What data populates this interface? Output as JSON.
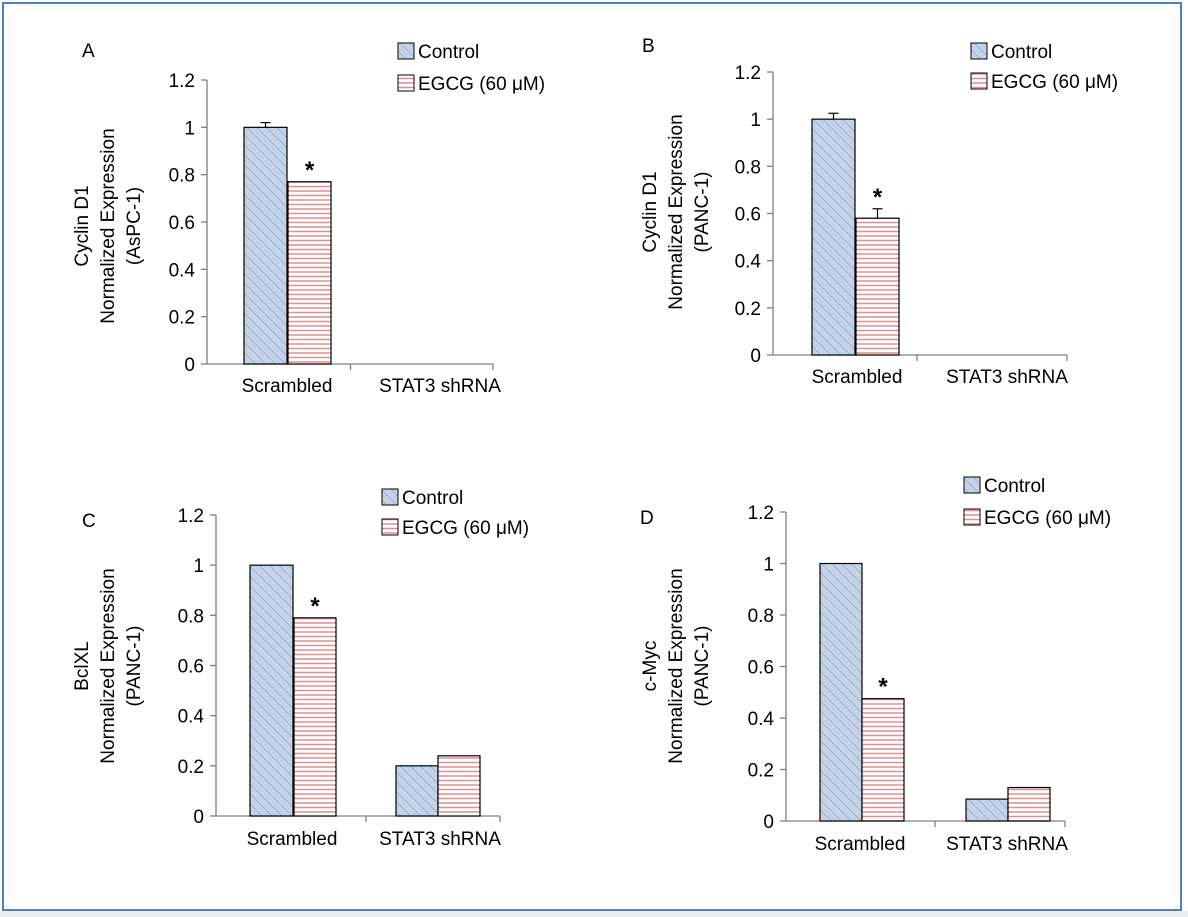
{
  "colors": {
    "frame": "#4f81bd",
    "control_fill": "#c5d3e8",
    "control_hatch": "#8eaad2",
    "egcg_fill": "#ffffff",
    "egcg_hatch": "#e28e8e",
    "axis": "#7f7f7f",
    "bar_stroke": "#000000"
  },
  "chart_data": [
    {
      "type": "bar",
      "panel_label": "A",
      "ylabel": [
        "Cyclin D1",
        "Normalized Expression",
        "(AsPC-1)"
      ],
      "categories": [
        "Scrambled",
        "STAT3 shRNA"
      ],
      "yticks": [
        "0",
        "0.2",
        "0.4",
        "0.6",
        "0.8",
        "1",
        "1.2"
      ],
      "ylim": [
        0,
        1.2
      ],
      "legend": [
        "Control",
        "EGCG (60 μM)"
      ],
      "series": [
        {
          "name": "Control",
          "values": [
            1.0,
            0
          ],
          "errors": [
            0.02,
            0
          ]
        },
        {
          "name": "EGCG (60 μM)",
          "values": [
            0.77,
            0
          ],
          "errors": [
            0,
            0
          ]
        }
      ],
      "annotations": [
        {
          "text": "*",
          "category": 0,
          "series": 1
        }
      ]
    },
    {
      "type": "bar",
      "panel_label": "B",
      "ylabel": [
        "Cyclin D1",
        "Normalized Expression",
        "(PANC-1)"
      ],
      "categories": [
        "Scrambled",
        "STAT3 shRNA"
      ],
      "yticks": [
        "0",
        "0.2",
        "0.4",
        "0.6",
        "0.8",
        "1",
        "1.2"
      ],
      "ylim": [
        0,
        1.2
      ],
      "legend": [
        "Control",
        "EGCG (60 μM)"
      ],
      "series": [
        {
          "name": "Control",
          "values": [
            1.0,
            0
          ],
          "errors": [
            0.025,
            0
          ]
        },
        {
          "name": "EGCG (60 μM)",
          "values": [
            0.58,
            0
          ],
          "errors": [
            0.04,
            0
          ]
        }
      ],
      "annotations": [
        {
          "text": "*",
          "category": 0,
          "series": 1
        }
      ]
    },
    {
      "type": "bar",
      "panel_label": "C",
      "ylabel": [
        "BclXL",
        "Normalized Expression",
        "(PANC-1)"
      ],
      "categories": [
        "Scrambled",
        "STAT3 shRNA"
      ],
      "yticks": [
        "0",
        "0.2",
        "0.4",
        "0.6",
        "0.8",
        "1",
        "1.2"
      ],
      "ylim": [
        0,
        1.2
      ],
      "legend": [
        "Control",
        "EGCG (60 μM)"
      ],
      "series": [
        {
          "name": "Control",
          "values": [
            1.0,
            0.2
          ],
          "errors": [
            0,
            0
          ]
        },
        {
          "name": "EGCG (60 μM)",
          "values": [
            0.79,
            0.24
          ],
          "errors": [
            0,
            0
          ]
        }
      ],
      "annotations": [
        {
          "text": "*",
          "category": 0,
          "series": 1
        }
      ]
    },
    {
      "type": "bar",
      "panel_label": "D",
      "ylabel": [
        "c-Myc",
        "Normalized Expression",
        "(PANC-1)"
      ],
      "categories": [
        "Scrambled",
        "STAT3 shRNA"
      ],
      "yticks": [
        "0",
        "0.2",
        "0.4",
        "0.6",
        "0.8",
        "1",
        "1.2"
      ],
      "ylim": [
        0,
        1.2
      ],
      "legend": [
        "Control",
        "EGCG (60 μM)"
      ],
      "series": [
        {
          "name": "Control",
          "values": [
            1.0,
            0.085
          ],
          "errors": [
            0,
            0
          ]
        },
        {
          "name": "EGCG (60 μM)",
          "values": [
            0.475,
            0.13
          ],
          "errors": [
            0,
            0
          ]
        }
      ],
      "annotations": [
        {
          "text": "*",
          "category": 0,
          "series": 1
        }
      ]
    }
  ]
}
